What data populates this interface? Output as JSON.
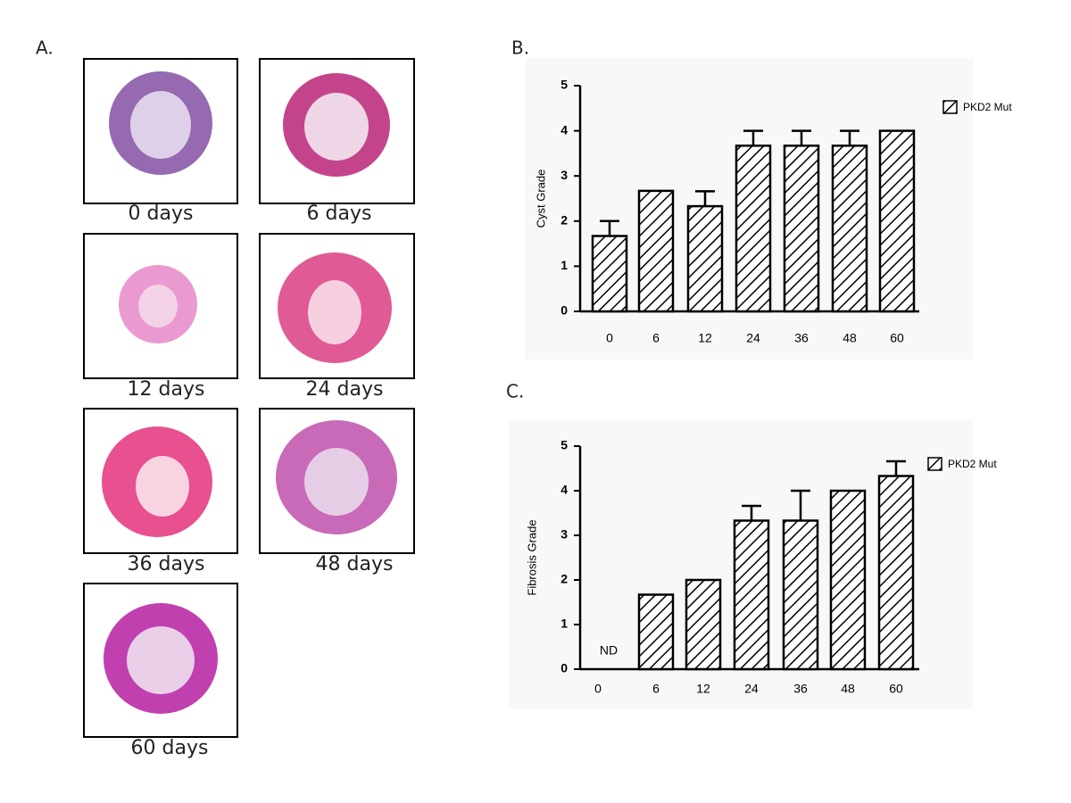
{
  "panel_a": {
    "label": "A.",
    "captions": [
      "0 days",
      "6 days",
      "12 days",
      "24 days",
      "36 days",
      "48 days",
      "60 days"
    ]
  },
  "chart_data": [
    {
      "type": "bar",
      "panel_label": "B.",
      "ylabel": "Cyst Grade",
      "categories": [
        "0",
        "6",
        "12",
        "24",
        "36",
        "48",
        "60"
      ],
      "series": [
        {
          "name": "PKD2 Mut",
          "color": "#000000",
          "values": [
            1.67,
            2.67,
            2.33,
            3.67,
            3.67,
            3.67,
            4
          ],
          "errors": [
            0.33,
            0,
            0.33,
            0.33,
            0.33,
            0.33,
            0
          ]
        }
      ],
      "ylim": [
        0,
        5
      ],
      "yticks": [
        0,
        1,
        2,
        3,
        4,
        5
      ],
      "pattern": "hatch",
      "legend": "top-right"
    },
    {
      "type": "bar",
      "panel_label": "C.",
      "ylabel": "Fibrosis Grade",
      "categories": [
        "0",
        "6",
        "12",
        "24",
        "36",
        "48",
        "60"
      ],
      "series": [
        {
          "name": "PKD2 Mut",
          "color": "#000000",
          "values": [
            null,
            1.67,
            2,
            3.33,
            3.33,
            4,
            4.33
          ],
          "errors": [
            null,
            0,
            0,
            0.33,
            0.67,
            0,
            0.33
          ]
        }
      ],
      "annotation": "ND",
      "ylim": [
        0,
        5
      ],
      "yticks": [
        0,
        1,
        2,
        3,
        4,
        5
      ],
      "pattern": "hatch",
      "legend": "top-right"
    }
  ]
}
